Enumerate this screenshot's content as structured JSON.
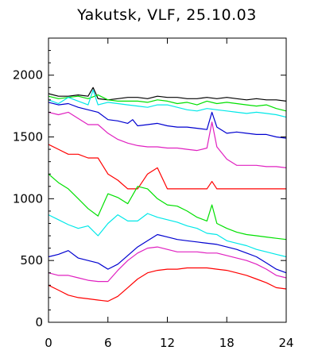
{
  "title": "Yakutsk, VLF, 25.10.03",
  "chart_data": {
    "type": "line",
    "title": "Yakutsk, VLF, 25.10.03",
    "xlabel": "",
    "ylabel": "",
    "xlim": [
      0,
      24
    ],
    "ylim": [
      0,
      2300
    ],
    "xticks": [
      0,
      6,
      12,
      18,
      24
    ],
    "yticks": [
      0,
      500,
      1000,
      1500,
      2000
    ],
    "grid": false,
    "legend": "none",
    "series": [
      {
        "color": "#000000",
        "x": [
          0,
          1,
          2,
          3,
          4,
          4.5,
          5,
          6,
          7,
          8,
          9,
          10,
          11,
          12,
          13,
          14,
          15,
          16,
          17,
          18,
          19,
          20,
          21,
          22,
          23,
          24
        ],
        "values": [
          1850,
          1830,
          1830,
          1840,
          1830,
          1900,
          1810,
          1800,
          1810,
          1820,
          1820,
          1810,
          1830,
          1820,
          1820,
          1810,
          1810,
          1820,
          1810,
          1820,
          1810,
          1800,
          1810,
          1800,
          1800,
          1790
        ]
      },
      {
        "color": "#00e000",
        "x": [
          0,
          1,
          2,
          3,
          4,
          5,
          6,
          7,
          8,
          9,
          10,
          11,
          12,
          13,
          14,
          15,
          16,
          17,
          18,
          19,
          20,
          21,
          22,
          23,
          24
        ],
        "values": [
          1830,
          1810,
          1820,
          1830,
          1810,
          1840,
          1800,
          1790,
          1790,
          1790,
          1780,
          1800,
          1790,
          1770,
          1780,
          1760,
          1790,
          1770,
          1780,
          1770,
          1760,
          1750,
          1760,
          1730,
          1710
        ]
      },
      {
        "color": "#00e8e8",
        "x": [
          0,
          1,
          2,
          3,
          4,
          4.5,
          5,
          6,
          7,
          8,
          9,
          10,
          11,
          12,
          13,
          14,
          15,
          16,
          17,
          18,
          19,
          20,
          21,
          22,
          23,
          24
        ],
        "values": [
          1800,
          1770,
          1820,
          1790,
          1760,
          1880,
          1760,
          1780,
          1770,
          1760,
          1750,
          1740,
          1760,
          1760,
          1740,
          1720,
          1710,
          1730,
          1720,
          1710,
          1700,
          1690,
          1700,
          1690,
          1680,
          1660
        ]
      },
      {
        "color": "#0000d0",
        "x": [
          0,
          1,
          2,
          3,
          4,
          5,
          6,
          7,
          8,
          8.5,
          9,
          10,
          11,
          12,
          13,
          14,
          15,
          16,
          16.5,
          17,
          18,
          19,
          20,
          21,
          22,
          23,
          24
        ],
        "values": [
          1780,
          1760,
          1770,
          1740,
          1720,
          1700,
          1640,
          1630,
          1610,
          1640,
          1590,
          1600,
          1610,
          1590,
          1580,
          1580,
          1570,
          1560,
          1700,
          1580,
          1530,
          1540,
          1530,
          1520,
          1520,
          1500,
          1490
        ]
      },
      {
        "color": "#e020c0",
        "x": [
          0,
          1,
          2,
          3,
          4,
          5,
          6,
          7,
          8,
          9,
          10,
          11,
          12,
          13,
          14,
          15,
          16,
          16.5,
          17,
          18,
          19,
          20,
          21,
          22,
          23,
          24
        ],
        "values": [
          1700,
          1680,
          1700,
          1650,
          1600,
          1600,
          1530,
          1480,
          1450,
          1430,
          1420,
          1420,
          1410,
          1410,
          1400,
          1390,
          1410,
          1620,
          1420,
          1320,
          1270,
          1270,
          1270,
          1260,
          1260,
          1250
        ]
      },
      {
        "color": "#ff0000",
        "x": [
          0,
          1,
          2,
          3,
          4,
          5,
          6,
          7,
          8,
          9,
          10,
          11,
          12,
          13,
          14,
          15,
          16,
          16.5,
          17,
          18,
          19,
          20,
          21,
          22,
          23,
          24
        ],
        "values": [
          1440,
          1400,
          1360,
          1360,
          1330,
          1330,
          1200,
          1150,
          1080,
          1080,
          1200,
          1250,
          1080,
          1080,
          1080,
          1080,
          1080,
          1140,
          1080,
          1080,
          1080,
          1080,
          1080,
          1080,
          1080,
          1080
        ]
      },
      {
        "color": "#00e000",
        "x": [
          0,
          1,
          2,
          3,
          4,
          5,
          6,
          7,
          8,
          9,
          10,
          11,
          12,
          13,
          14,
          15,
          16,
          16.5,
          17,
          18,
          19,
          20,
          21,
          22,
          23,
          24
        ],
        "values": [
          1200,
          1130,
          1080,
          1000,
          920,
          860,
          1040,
          1010,
          960,
          1100,
          1080,
          1000,
          950,
          940,
          900,
          850,
          820,
          950,
          800,
          760,
          730,
          710,
          700,
          690,
          680,
          670
        ]
      },
      {
        "color": "#00e8e8",
        "x": [
          0,
          1,
          2,
          3,
          4,
          5,
          6,
          7,
          8,
          9,
          10,
          11,
          12,
          13,
          14,
          15,
          16,
          17,
          18,
          19,
          20,
          21,
          22,
          23,
          24
        ],
        "values": [
          870,
          830,
          790,
          760,
          780,
          700,
          800,
          870,
          820,
          820,
          880,
          850,
          830,
          810,
          780,
          760,
          720,
          710,
          660,
          640,
          620,
          590,
          570,
          550,
          530
        ]
      },
      {
        "color": "#0000d0",
        "x": [
          0,
          1,
          2,
          3,
          4,
          5,
          6,
          7,
          8,
          9,
          10,
          11,
          12,
          13,
          14,
          15,
          16,
          17,
          18,
          19,
          20,
          21,
          22,
          23,
          24
        ],
        "values": [
          530,
          550,
          580,
          520,
          500,
          480,
          430,
          470,
          540,
          610,
          660,
          710,
          690,
          670,
          660,
          650,
          640,
          630,
          610,
          590,
          560,
          530,
          480,
          430,
          400
        ]
      },
      {
        "color": "#e020c0",
        "x": [
          0,
          1,
          2,
          3,
          4,
          5,
          6,
          7,
          8,
          9,
          10,
          11,
          12,
          13,
          14,
          15,
          16,
          17,
          18,
          19,
          20,
          21,
          22,
          23,
          24
        ],
        "values": [
          400,
          380,
          380,
          360,
          340,
          330,
          330,
          420,
          500,
          560,
          600,
          610,
          590,
          570,
          570,
          570,
          560,
          560,
          540,
          520,
          500,
          470,
          430,
          380,
          360
        ]
      },
      {
        "color": "#ff0000",
        "x": [
          0,
          1,
          2,
          3,
          4,
          5,
          6,
          7,
          8,
          9,
          10,
          11,
          12,
          13,
          14,
          15,
          16,
          17,
          18,
          19,
          20,
          21,
          22,
          23,
          24
        ],
        "values": [
          300,
          260,
          220,
          200,
          190,
          180,
          170,
          210,
          280,
          350,
          400,
          420,
          430,
          430,
          440,
          440,
          440,
          430,
          420,
          400,
          380,
          350,
          320,
          280,
          270
        ]
      }
    ]
  }
}
